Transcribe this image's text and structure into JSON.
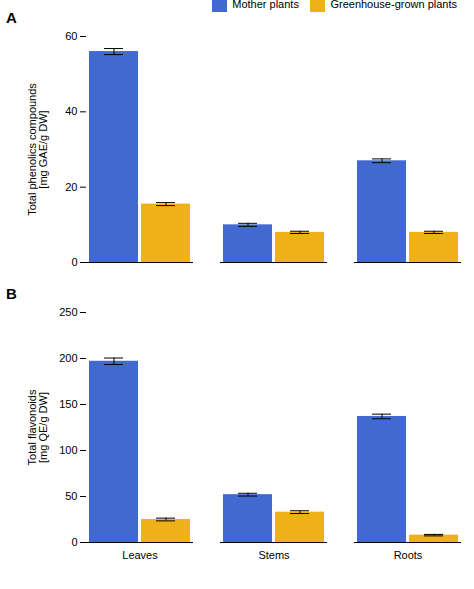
{
  "chart_data": [
    {
      "type": "bar",
      "title": "A",
      "categories": [
        "Leaves",
        "Stems",
        "Roots"
      ],
      "series": [
        {
          "name": "Mother plants",
          "values": [
            56.0,
            10.0,
            27.0
          ],
          "errors": [
            0.8,
            0.4,
            0.5
          ]
        },
        {
          "name": "Greenhouse-grown plants",
          "values": [
            15.5,
            8.0,
            8.0
          ],
          "errors": [
            0.4,
            0.3,
            0.3
          ]
        }
      ],
      "ylabel": "Total phenolics compounds\n[mg GAE/g DW]",
      "ylim": [
        0,
        60
      ],
      "yticks": [
        0,
        20,
        40,
        60
      ],
      "legend": "upper right",
      "tick_labels": "y"
    },
    {
      "type": "bar",
      "title": "B",
      "categories": [
        "Leaves",
        "Stems",
        "Roots"
      ],
      "series": [
        {
          "name": "Mother plants",
          "values": [
            197.0,
            52.0,
            137.0
          ],
          "errors": [
            3.5,
            1.5,
            2.5
          ]
        },
        {
          "name": "Greenhouse-grown plants",
          "values": [
            25.0,
            33.0,
            8.0
          ],
          "errors": [
            1.5,
            1.5,
            0.8
          ]
        }
      ],
      "ylabel": "Total flavonoids\n[mg QE/g DW]",
      "ylim": [
        0,
        250
      ],
      "yticks": [
        0,
        50,
        100,
        150,
        200,
        250
      ]
    }
  ]
}
